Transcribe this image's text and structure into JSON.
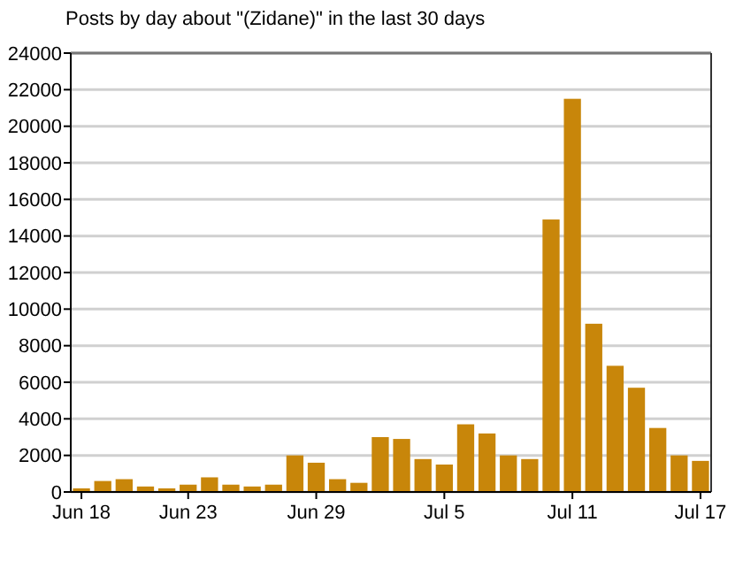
{
  "chart_data": {
    "type": "bar",
    "title": "Posts by day about \"(Zidane)\" in the last 30 days",
    "categories": [
      "Jun 18",
      null,
      null,
      null,
      null,
      "Jun 23",
      null,
      null,
      null,
      null,
      null,
      "Jun 29",
      null,
      null,
      null,
      null,
      null,
      "Jul 5",
      null,
      null,
      null,
      null,
      null,
      "Jul 11",
      null,
      null,
      null,
      null,
      null,
      "Jul 17"
    ],
    "values": [
      200,
      600,
      700,
      300,
      200,
      400,
      800,
      400,
      300,
      400,
      2000,
      1600,
      700,
      500,
      3000,
      2900,
      1800,
      1500,
      3700,
      3200,
      2000,
      1800,
      14900,
      21500,
      9200,
      6900,
      5700,
      3500,
      2000,
      1700
    ],
    "color": "#c8860a",
    "ylim": [
      0,
      24000
    ],
    "yticks": [
      0,
      2000,
      4000,
      6000,
      8000,
      10000,
      12000,
      14000,
      16000,
      18000,
      20000,
      22000,
      24000
    ],
    "grid": "y"
  }
}
